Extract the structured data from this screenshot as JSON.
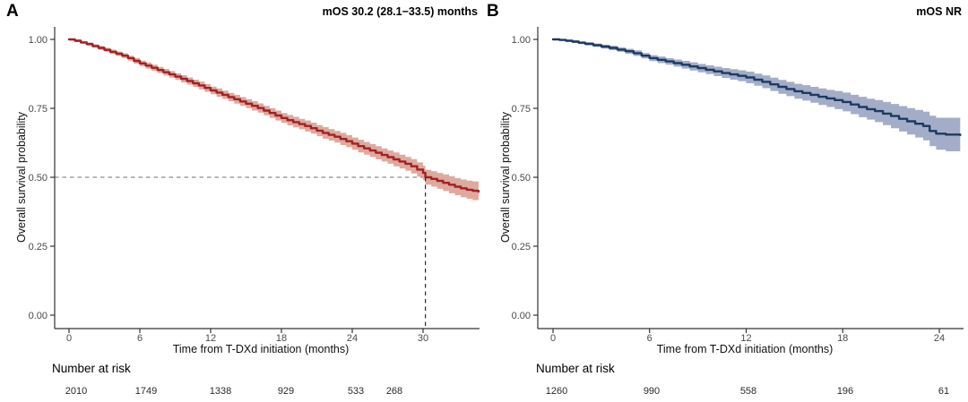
{
  "chart_data": [
    {
      "type": "line",
      "subtype": "kaplan-meier",
      "panel_label": "A",
      "title": "mOS 30.2 (28.1−33.5) months",
      "xlabel": "Time from T-DXd initiation (months)",
      "ylabel": "Overall survival probability",
      "xlim": [
        0,
        34.8
      ],
      "ylim": [
        0,
        1
      ],
      "grid": false,
      "x_tick_values": [
        0,
        6,
        12,
        18,
        24,
        30
      ],
      "x_tick_labels": [
        "0",
        "6",
        "12",
        "18",
        "24",
        "30"
      ],
      "y_tick_values": [
        1.0,
        0.75,
        0.5,
        0.25,
        0.0
      ],
      "y_tick_labels": [
        "1.00",
        "0.75",
        "0.50",
        "0.25",
        "0.00"
      ],
      "line_color": "#a42026",
      "band_color": "#ddaa9d",
      "median_marker": {
        "time": 30.2,
        "prob": 0.5
      },
      "median_hline_color": "#8a8a8a",
      "median_vline_color": "#2a2a2a",
      "number_at_risk_label": "Number at risk",
      "number_at_risk": [
        "2010",
        "1749",
        "1338",
        "929",
        "533",
        "268"
      ],
      "points": [
        [
          0,
          1.0,
          0.004
        ],
        [
          0.5,
          0.995,
          0.005
        ],
        [
          1,
          0.989,
          0.005
        ],
        [
          1.5,
          0.983,
          0.006
        ],
        [
          2,
          0.976,
          0.006
        ],
        [
          2.5,
          0.969,
          0.007
        ],
        [
          3,
          0.962,
          0.007
        ],
        [
          3.5,
          0.955,
          0.008
        ],
        [
          4,
          0.948,
          0.008
        ],
        [
          4.5,
          0.941,
          0.009
        ],
        [
          5,
          0.932,
          0.009
        ],
        [
          5.5,
          0.922,
          0.01
        ],
        [
          6,
          0.913,
          0.01
        ],
        [
          6.5,
          0.905,
          0.011
        ],
        [
          7,
          0.897,
          0.011
        ],
        [
          7.5,
          0.889,
          0.011
        ],
        [
          8,
          0.881,
          0.012
        ],
        [
          8.5,
          0.873,
          0.012
        ],
        [
          9,
          0.865,
          0.012
        ],
        [
          9.5,
          0.857,
          0.013
        ],
        [
          10,
          0.849,
          0.013
        ],
        [
          10.5,
          0.841,
          0.013
        ],
        [
          11,
          0.833,
          0.014
        ],
        [
          11.5,
          0.824,
          0.014
        ],
        [
          12,
          0.815,
          0.014
        ],
        [
          12.5,
          0.807,
          0.015
        ],
        [
          13,
          0.799,
          0.015
        ],
        [
          13.5,
          0.791,
          0.015
        ],
        [
          14,
          0.783,
          0.016
        ],
        [
          14.5,
          0.775,
          0.016
        ],
        [
          15,
          0.767,
          0.016
        ],
        [
          15.5,
          0.759,
          0.017
        ],
        [
          16,
          0.751,
          0.017
        ],
        [
          16.5,
          0.742,
          0.017
        ],
        [
          17,
          0.733,
          0.018
        ],
        [
          17.5,
          0.724,
          0.018
        ],
        [
          18,
          0.715,
          0.018
        ],
        [
          18.5,
          0.707,
          0.019
        ],
        [
          19,
          0.7,
          0.019
        ],
        [
          19.5,
          0.693,
          0.019
        ],
        [
          20,
          0.686,
          0.02
        ],
        [
          20.5,
          0.678,
          0.02
        ],
        [
          21,
          0.669,
          0.02
        ],
        [
          21.5,
          0.661,
          0.021
        ],
        [
          22,
          0.654,
          0.021
        ],
        [
          22.5,
          0.647,
          0.021
        ],
        [
          23,
          0.639,
          0.022
        ],
        [
          23.5,
          0.631,
          0.022
        ],
        [
          24,
          0.622,
          0.022
        ],
        [
          24.5,
          0.613,
          0.023
        ],
        [
          25,
          0.605,
          0.023
        ],
        [
          25.5,
          0.597,
          0.023
        ],
        [
          26,
          0.589,
          0.024
        ],
        [
          26.5,
          0.581,
          0.024
        ],
        [
          27,
          0.573,
          0.024
        ],
        [
          27.5,
          0.565,
          0.025
        ],
        [
          28,
          0.557,
          0.025
        ],
        [
          28.5,
          0.549,
          0.025
        ],
        [
          29,
          0.54,
          0.026
        ],
        [
          29.5,
          0.528,
          0.026
        ],
        [
          30,
          0.516,
          0.026
        ],
        [
          30.2,
          0.5,
          0.027
        ],
        [
          30.7,
          0.494,
          0.028
        ],
        [
          31.2,
          0.487,
          0.029
        ],
        [
          31.7,
          0.48,
          0.03
        ],
        [
          32.2,
          0.473,
          0.031
        ],
        [
          32.7,
          0.466,
          0.031
        ],
        [
          33.2,
          0.46,
          0.032
        ],
        [
          33.7,
          0.455,
          0.033
        ],
        [
          34.2,
          0.451,
          0.034
        ],
        [
          34.7,
          0.447,
          0.035
        ]
      ]
    },
    {
      "type": "line",
      "subtype": "kaplan-meier",
      "panel_label": "B",
      "title": "mOS NR",
      "xlabel": "Time from T-DXd initiation (months)",
      "ylabel": "Overall survival probability",
      "xlim": [
        0,
        25.5
      ],
      "ylim": [
        0,
        1
      ],
      "grid": false,
      "x_tick_values": [
        0,
        6,
        12,
        18,
        24
      ],
      "x_tick_labels": [
        "0",
        "6",
        "12",
        "18",
        "24"
      ],
      "y_tick_values": [
        1.0,
        0.75,
        0.5,
        0.25,
        0.0
      ],
      "y_tick_labels": [
        "1.00",
        "0.75",
        "0.50",
        "0.25",
        "0.00"
      ],
      "line_color": "#1c3a63",
      "band_color": "#a4adc8",
      "median_marker": null,
      "number_at_risk_label": "Number at risk",
      "number_at_risk": [
        "1260",
        "990",
        "558",
        "196",
        "61"
      ],
      "points": [
        [
          0,
          1.0,
          0.003
        ],
        [
          0.4,
          0.998,
          0.004
        ],
        [
          0.8,
          0.995,
          0.004
        ],
        [
          1.2,
          0.992,
          0.005
        ],
        [
          1.6,
          0.988,
          0.005
        ],
        [
          2,
          0.984,
          0.006
        ],
        [
          2.5,
          0.979,
          0.006
        ],
        [
          3,
          0.974,
          0.007
        ],
        [
          3.5,
          0.969,
          0.008
        ],
        [
          4,
          0.963,
          0.008
        ],
        [
          4.5,
          0.957,
          0.009
        ],
        [
          5,
          0.95,
          0.01
        ],
        [
          5.5,
          0.941,
          0.01
        ],
        [
          6,
          0.932,
          0.011
        ],
        [
          6.5,
          0.926,
          0.012
        ],
        [
          7,
          0.92,
          0.012
        ],
        [
          7.5,
          0.914,
          0.013
        ],
        [
          8,
          0.908,
          0.014
        ],
        [
          8.5,
          0.902,
          0.015
        ],
        [
          9,
          0.896,
          0.015
        ],
        [
          9.5,
          0.89,
          0.016
        ],
        [
          10,
          0.884,
          0.017
        ],
        [
          10.5,
          0.878,
          0.018
        ],
        [
          11,
          0.873,
          0.019
        ],
        [
          11.5,
          0.868,
          0.02
        ],
        [
          12,
          0.862,
          0.021
        ],
        [
          12.5,
          0.854,
          0.022
        ],
        [
          13,
          0.846,
          0.023
        ],
        [
          13.5,
          0.837,
          0.024
        ],
        [
          14,
          0.828,
          0.025
        ],
        [
          14.5,
          0.82,
          0.026
        ],
        [
          15,
          0.812,
          0.027
        ],
        [
          15.5,
          0.806,
          0.028
        ],
        [
          16,
          0.799,
          0.029
        ],
        [
          16.5,
          0.792,
          0.03
        ],
        [
          17,
          0.786,
          0.031
        ],
        [
          17.5,
          0.78,
          0.033
        ],
        [
          18,
          0.773,
          0.034
        ],
        [
          18.5,
          0.764,
          0.035
        ],
        [
          19,
          0.755,
          0.037
        ],
        [
          19.5,
          0.747,
          0.038
        ],
        [
          20,
          0.74,
          0.04
        ],
        [
          20.5,
          0.731,
          0.042
        ],
        [
          21,
          0.722,
          0.044
        ],
        [
          21.5,
          0.712,
          0.046
        ],
        [
          22,
          0.703,
          0.048
        ],
        [
          22.5,
          0.694,
          0.05
        ],
        [
          23,
          0.686,
          0.052
        ],
        [
          23.4,
          0.668,
          0.055
        ],
        [
          23.8,
          0.658,
          0.058
        ],
        [
          24.4,
          0.655,
          0.061
        ],
        [
          25.3,
          0.653,
          0.065
        ]
      ]
    }
  ]
}
